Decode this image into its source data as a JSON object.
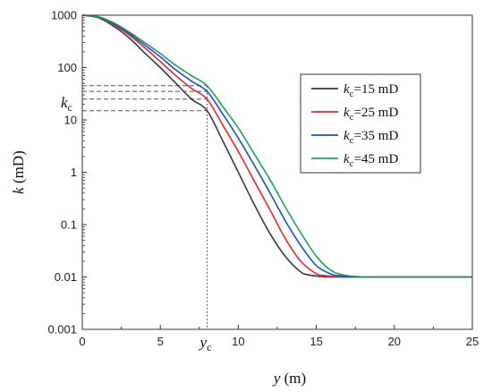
{
  "chart_data": {
    "type": "line",
    "title": "",
    "xlabel": {
      "var": "y",
      "unit": " (m)"
    },
    "ylabel": {
      "var": "k",
      "unit": " (mD)"
    },
    "xlim": [
      0,
      25
    ],
    "ylim": [
      0.001,
      1000
    ],
    "yscale": "log",
    "grid": false,
    "legend_position": "right-middle",
    "x_ticks": [
      "0",
      "5",
      "10",
      "15",
      "20",
      "25"
    ],
    "y_ticks": [
      "0.001",
      "0.01",
      "0.1",
      "1",
      "10",
      "100",
      "1000"
    ],
    "annotations": {
      "kc_label": {
        "main": "k",
        "sub": "c"
      },
      "yc_label": {
        "main": "y",
        "sub": "c"
      },
      "yc_value": 8,
      "dashed_levels": [
        15,
        25,
        35,
        45
      ]
    },
    "series": [
      {
        "legend_main": "k",
        "legend_sub": "c",
        "legend_rest": "=15 mD",
        "color": "#3a3a3a",
        "x": [
          0,
          1,
          2,
          3,
          4,
          5,
          6,
          7,
          8,
          9,
          10,
          11,
          12,
          13,
          14,
          14.5,
          15,
          15.5,
          16,
          17,
          18,
          20,
          25
        ],
        "y": [
          1000,
          900,
          620,
          370,
          190,
          100,
          50,
          25,
          15,
          4,
          1,
          0.25,
          0.07,
          0.025,
          0.0125,
          0.011,
          0.0104,
          0.0101,
          0.01,
          0.01,
          0.01,
          0.01,
          0.01
        ]
      },
      {
        "legend_main": "k",
        "legend_sub": "c",
        "legend_rest": "=25 mD",
        "color": "#e8262b",
        "x": [
          0,
          1,
          2,
          3,
          4,
          5,
          6,
          7,
          8,
          9,
          10,
          11,
          12,
          13,
          14,
          15,
          15.5,
          16,
          16.5,
          17,
          18,
          20,
          25
        ],
        "y": [
          1000,
          920,
          660,
          420,
          240,
          130,
          70,
          40,
          25,
          8,
          2.5,
          0.7,
          0.2,
          0.055,
          0.02,
          0.0115,
          0.0107,
          0.0103,
          0.0101,
          0.01,
          0.01,
          0.01,
          0.01
        ]
      },
      {
        "legend_main": "k",
        "legend_sub": "c",
        "legend_rest": "=35 mD",
        "color": "#1f4fbf",
        "x": [
          0,
          1,
          2,
          3,
          4,
          5,
          6,
          7,
          8,
          9,
          10,
          11,
          12,
          13,
          14,
          15,
          16,
          16.5,
          17,
          17.5,
          18,
          20,
          25
        ],
        "y": [
          1000,
          930,
          690,
          450,
          270,
          160,
          90,
          55,
          35,
          13,
          4.5,
          1.4,
          0.42,
          0.12,
          0.04,
          0.0165,
          0.0112,
          0.0106,
          0.0102,
          0.0101,
          0.01,
          0.01,
          0.01
        ]
      },
      {
        "legend_main": "k",
        "legend_sub": "c",
        "legend_rest": "=45 mD",
        "color": "#19a35a",
        "x": [
          0,
          1,
          2,
          3,
          4,
          5,
          6,
          7,
          8,
          9,
          10,
          11,
          12,
          13,
          14,
          15,
          16,
          17,
          17.5,
          18,
          19,
          20,
          25
        ],
        "y": [
          1000,
          940,
          720,
          480,
          300,
          185,
          110,
          70,
          45,
          18,
          7,
          2.3,
          0.75,
          0.22,
          0.07,
          0.025,
          0.013,
          0.0106,
          0.0103,
          0.0101,
          0.01,
          0.01,
          0.01
        ]
      }
    ]
  }
}
